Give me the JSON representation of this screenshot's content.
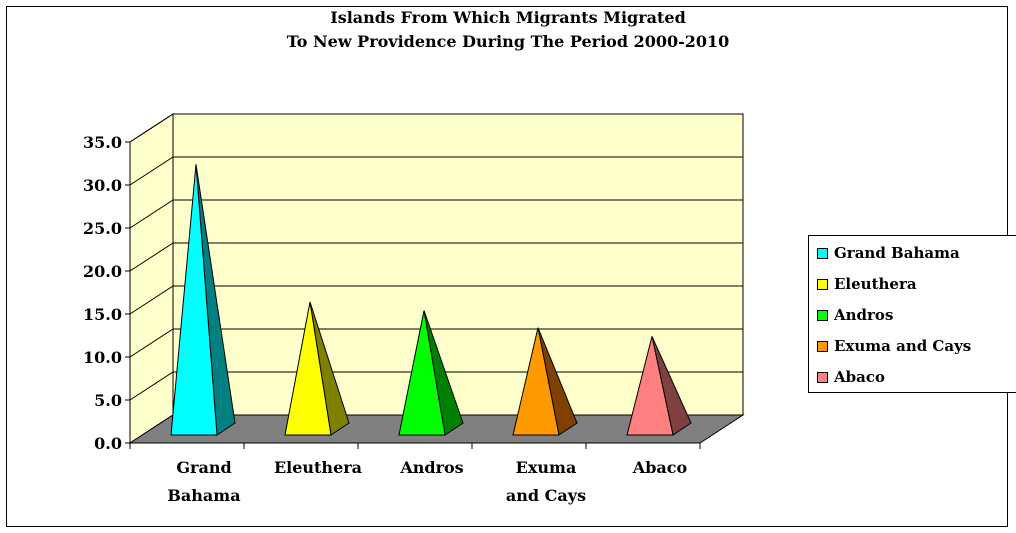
{
  "chart_data": {
    "type": "bar",
    "style": "3d-pyramid",
    "title": [
      "Islands From Which Migrants Migrated",
      "To New Providence During The Period 2000-2010"
    ],
    "categories": [
      [
        "Grand",
        "Bahama"
      ],
      [
        "Eleuthera"
      ],
      [
        "Andros"
      ],
      [
        "Exuma",
        "and Cays"
      ],
      [
        "Abaco"
      ]
    ],
    "values": [
      31.0,
      15.0,
      14.0,
      12.0,
      11.0
    ],
    "ylim": [
      0,
      35
    ],
    "ytick_labels": [
      "0.0",
      "5.0",
      "10.0",
      "15.0",
      "20.0",
      "25.0",
      "30.0",
      "35.0"
    ],
    "grid": true,
    "legend": {
      "position": "right",
      "entries": [
        "Grand Bahama",
        "Eleuthera",
        "Andros",
        "Exuma and Cays",
        "Abaco"
      ]
    },
    "colors": [
      "#00ffff",
      "#ffff00",
      "#00ff00",
      "#ff9900",
      "#ff8080"
    ],
    "shade_colors": [
      "#008080",
      "#808000",
      "#008000",
      "#804000",
      "#804040"
    ],
    "wall_color": "#ffffcc",
    "floor_color": "#808080"
  }
}
